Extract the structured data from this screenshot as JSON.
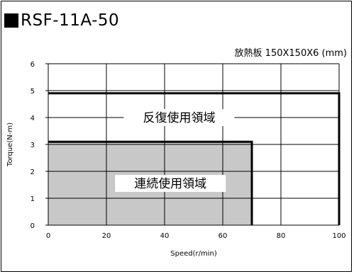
{
  "title": "RSF-11A-50",
  "subtitle": "放熱板 150X150X6 (mm)",
  "chart_data": {
    "type": "area",
    "title": "RSF-11A-50",
    "subtitle": "放熱板 150X150X6 (mm)",
    "xlabel": "Speed(r/min)",
    "ylabel": "Torque(N-m)",
    "xlim": [
      0,
      100
    ],
    "ylim": [
      0,
      6
    ],
    "x_ticks": [
      0,
      20,
      40,
      60,
      80,
      100
    ],
    "y_ticks": [
      0,
      1,
      2,
      3,
      4,
      5,
      6
    ],
    "grid": true,
    "series": [
      {
        "name": "反復使用領域",
        "x": [
          0,
          100,
          100
        ],
        "y": [
          4.9,
          4.9,
          0
        ],
        "fill": "none",
        "color": "#000000"
      },
      {
        "name": "連続使用領域",
        "x": [
          0,
          70,
          70
        ],
        "y": [
          3.1,
          3.1,
          0
        ],
        "fill": "#c8c8c8",
        "color": "#000000"
      }
    ],
    "annotations": [
      {
        "text": "反復使用領域",
        "x": 45,
        "y": 4.0
      },
      {
        "text": "連続使用領域",
        "x": 42,
        "y": 1.55
      }
    ]
  }
}
